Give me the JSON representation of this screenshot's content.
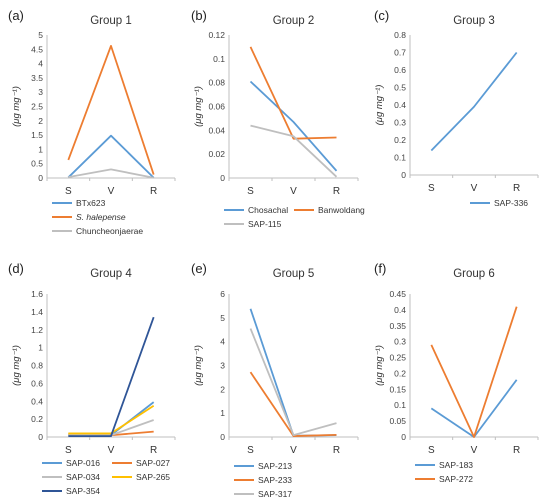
{
  "chart_data": [
    {
      "panel_label": "(a)",
      "title": "Group 1",
      "type": "line",
      "categories": [
        "S",
        "V",
        "R"
      ],
      "ylabel": "(μg mg⁻¹)",
      "ylim": [
        0,
        5
      ],
      "yticks": [
        "0",
        "0.5",
        "1",
        "1.5",
        "2",
        "2.5",
        "3",
        "3.5",
        "4",
        "4.5",
        "5"
      ],
      "yticks_values": [
        0,
        0.5,
        1,
        1.5,
        2,
        2.5,
        3,
        3.5,
        4,
        4.5,
        5
      ],
      "legend_layout": "one-per-row",
      "series": [
        {
          "name": "BTx623",
          "color": "#5b9bd5",
          "values": [
            0.02,
            1.48,
            0.01
          ]
        },
        {
          "name": "S. halepense",
          "color": "#ed7d31",
          "italic": true,
          "values": [
            0.63,
            4.62,
            0.12
          ]
        },
        {
          "name": "Chuncheonjaerae",
          "color": "#bfbfbf",
          "values": [
            0.03,
            0.3,
            0.01
          ]
        }
      ]
    },
    {
      "panel_label": "(b)",
      "title": "Group 2",
      "type": "line",
      "categories": [
        "S",
        "V",
        "R"
      ],
      "ylabel": "(μg mg⁻¹)",
      "ylim": [
        0,
        0.12
      ],
      "yticks": [
        "0",
        "0.02",
        "0.04",
        "0.06",
        "0.08",
        "0.1",
        "0.12"
      ],
      "yticks_values": [
        0,
        0.02,
        0.04,
        0.06,
        0.08,
        0.1,
        0.12
      ],
      "legend_layout": "two-per-row",
      "series": [
        {
          "name": "Chosachal",
          "color": "#5b9bd5",
          "values": [
            0.081,
            0.047,
            0.006
          ]
        },
        {
          "name": "Banwoldang",
          "color": "#ed7d31",
          "values": [
            0.11,
            0.033,
            0.034
          ]
        },
        {
          "name": "SAP-115",
          "color": "#bfbfbf",
          "values": [
            0.044,
            0.035,
            0.001
          ]
        }
      ]
    },
    {
      "panel_label": "(c)",
      "title": "Group 3",
      "type": "line",
      "categories": [
        "S",
        "V",
        "R"
      ],
      "ylabel": "(μg mg⁻¹)",
      "ylim": [
        0,
        0.8
      ],
      "yticks": [
        "0",
        "0.1",
        "0.2",
        "0.3",
        "0.4",
        "0.5",
        "0.6",
        "0.7",
        "0.8"
      ],
      "yticks_values": [
        0,
        0.1,
        0.2,
        0.3,
        0.4,
        0.5,
        0.6,
        0.7,
        0.8
      ],
      "legend_layout": "one-per-row",
      "series": [
        {
          "name": "SAP-336",
          "color": "#5b9bd5",
          "values": [
            0.14,
            0.39,
            0.7
          ]
        }
      ]
    },
    {
      "panel_label": "(d)",
      "title": "Group 4",
      "type": "line",
      "categories": [
        "S",
        "V",
        "R"
      ],
      "ylabel": "(μg mg⁻¹)",
      "ylim": [
        0,
        1.6
      ],
      "yticks": [
        "0",
        "0.2",
        "0.4",
        "0.6",
        "0.8",
        "1",
        "1.2",
        "1.4",
        "1.6"
      ],
      "yticks_values": [
        0,
        0.2,
        0.4,
        0.6,
        0.8,
        1,
        1.2,
        1.4,
        1.6
      ],
      "legend_layout": "two-per-row",
      "series": [
        {
          "name": "SAP-016",
          "color": "#5b9bd5",
          "values": [
            0.02,
            0.02,
            0.39
          ]
        },
        {
          "name": "SAP-027",
          "color": "#ed7d31",
          "values": [
            0.03,
            0.02,
            0.06
          ]
        },
        {
          "name": "SAP-034",
          "color": "#bfbfbf",
          "values": [
            0.03,
            0.02,
            0.19
          ]
        },
        {
          "name": "SAP-265",
          "color": "#ffc000",
          "values": [
            0.04,
            0.04,
            0.35
          ]
        },
        {
          "name": "SAP-354",
          "color": "#2f5597",
          "values": [
            0.01,
            0.01,
            1.34
          ]
        }
      ]
    },
    {
      "panel_label": "(e)",
      "title": "Group 5",
      "type": "line",
      "categories": [
        "S",
        "V",
        "R"
      ],
      "ylabel": "(μg mg⁻¹)",
      "ylim": [
        0,
        6
      ],
      "yticks": [
        "0",
        "1",
        "2",
        "3",
        "4",
        "5",
        "6"
      ],
      "yticks_values": [
        0,
        1,
        2,
        3,
        4,
        5,
        6
      ],
      "legend_layout": "one-per-row",
      "series": [
        {
          "name": "SAP-213",
          "color": "#5b9bd5",
          "values": [
            5.38,
            0.05,
            0.08
          ]
        },
        {
          "name": "SAP-233",
          "color": "#ed7d31",
          "values": [
            2.72,
            0.04,
            0.09
          ]
        },
        {
          "name": "SAP-317",
          "color": "#bfbfbf",
          "values": [
            4.55,
            0.08,
            0.58
          ]
        }
      ]
    },
    {
      "panel_label": "(f)",
      "title": "Group 6",
      "type": "line",
      "categories": [
        "S",
        "V",
        "R"
      ],
      "ylabel": "(μg mg⁻¹)",
      "ylim": [
        0,
        0.45
      ],
      "yticks": [
        "0",
        "0.05",
        "0.1",
        "0.15",
        "0.2",
        "0.25",
        "0.3",
        "0.35",
        "0.4",
        "0.45"
      ],
      "yticks_values": [
        0,
        0.05,
        0.1,
        0.15,
        0.2,
        0.25,
        0.3,
        0.35,
        0.4,
        0.45
      ],
      "legend_layout": "one-per-row",
      "series": [
        {
          "name": "SAP-183",
          "color": "#5b9bd5",
          "values": [
            0.09,
            0.0,
            0.18
          ]
        },
        {
          "name": "SAP-272",
          "color": "#ed7d31",
          "values": [
            0.29,
            0.0,
            0.41
          ]
        }
      ]
    }
  ]
}
